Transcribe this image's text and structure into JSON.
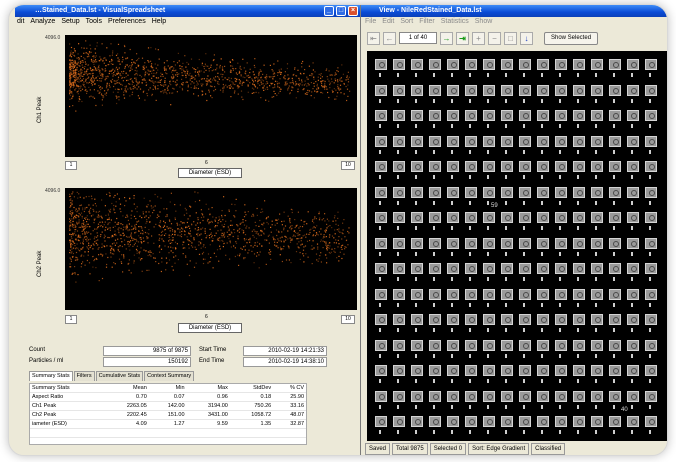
{
  "left_window": {
    "title": "…Stained_Data.lst - VisualSpreadsheet",
    "menu": [
      "dit",
      "Analyze",
      "Setup",
      "Tools",
      "Preferences",
      "Help"
    ],
    "plot1": {
      "y_max": "4096.0",
      "y_label": "Ch1 Peak",
      "x_min": "1",
      "x_mid": "6",
      "x_max": "10",
      "x_title": "Diameter (ESD)",
      "color": "#d86a1c"
    },
    "plot2": {
      "y_max": "4096.0",
      "y_label": "Ch2 Peak",
      "x_min": "1",
      "x_mid": "6",
      "x_max": "10",
      "x_title": "Diameter (ESD)",
      "color": "#d86a1c"
    },
    "info": {
      "count_label": "Count",
      "count_value": "9875 of 9875",
      "particles_label": "Particles / ml",
      "particles_value": "150192",
      "start_label": "Start Time",
      "start_value": "2010-02-19 14:21:33",
      "end_label": "End Time",
      "end_value": "2010-02-19 14:38:10"
    },
    "tabs": [
      "Summary Stats",
      "Filters",
      "Cumulative Stats",
      "Context Summary"
    ],
    "stats": {
      "headers": [
        "Summary Stats",
        "Mean",
        "Min",
        "Max",
        "StdDev",
        "% CV"
      ],
      "rows": [
        [
          "Aspect Ratio",
          "0.70",
          "0.07",
          "0.96",
          "0.18",
          "25.90"
        ],
        [
          "Ch1 Peak",
          "2263.05",
          "142.00",
          "3194.00",
          "750.26",
          "33.16"
        ],
        [
          "Ch2 Peak",
          "2202.45",
          "151.00",
          "3431.00",
          "1058.72",
          "48.07"
        ],
        [
          "iameter (ESD)",
          "4.09",
          "1.27",
          "9.59",
          "1.35",
          "32.87"
        ]
      ]
    }
  },
  "right_window": {
    "title": "View - NileRedStained_Data.lst",
    "menu": [
      "File",
      "Edit",
      "Sort",
      "Filter",
      "Statistics",
      "Show"
    ],
    "page_indicator": "1 of 40",
    "show_selected": "Show Selected",
    "gallery_label_1": "59",
    "gallery_label_2": "40",
    "status": {
      "saved": "Saved",
      "total": "Total 9875",
      "selected": "Selected 0",
      "sort": "Sort: Edge Gradient",
      "classified": "Classified"
    }
  }
}
